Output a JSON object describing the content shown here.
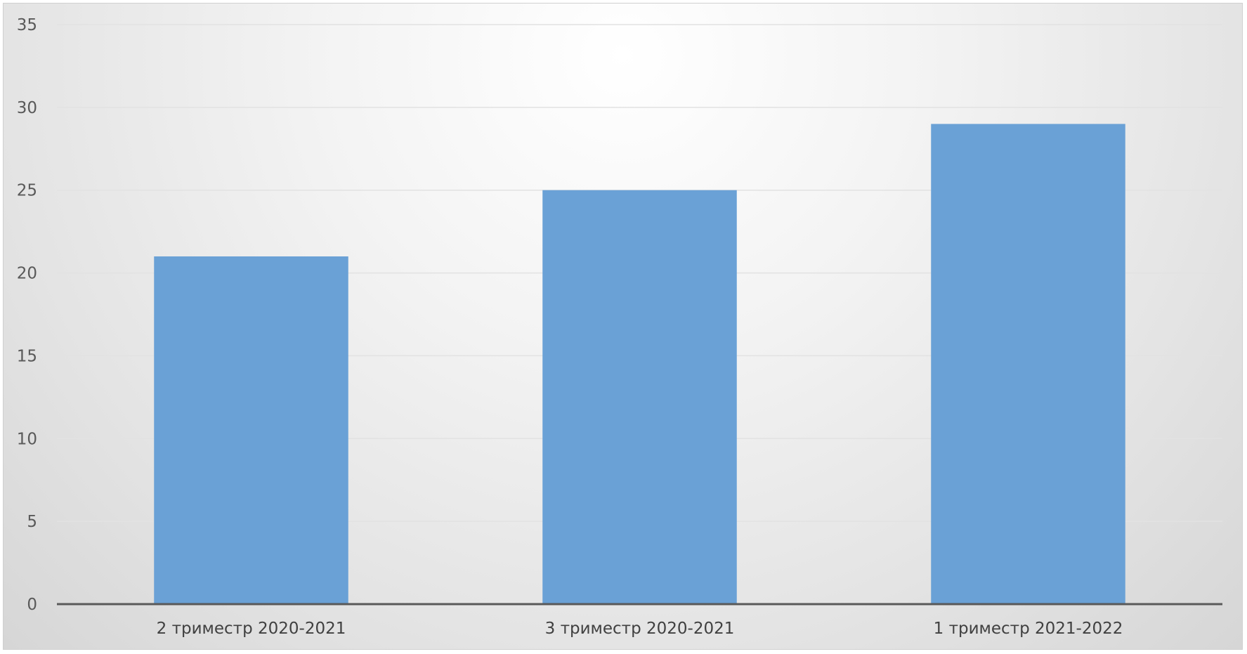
{
  "chart_data": {
    "type": "bar",
    "title": "",
    "xlabel": "",
    "ylabel": "",
    "categories": [
      "2 триместр 2020-2021",
      "3 триместр 2020-2021",
      "1 триместр 2021-2022"
    ],
    "values": [
      21,
      25,
      29
    ],
    "ylim": [
      0,
      35
    ],
    "yticks": [
      "0",
      "5",
      "10",
      "15",
      "20",
      "25",
      "30",
      "35"
    ],
    "grid": true,
    "legend": "none",
    "bar_color": "#6aa1d6",
    "background": "light gray radial gradient"
  }
}
